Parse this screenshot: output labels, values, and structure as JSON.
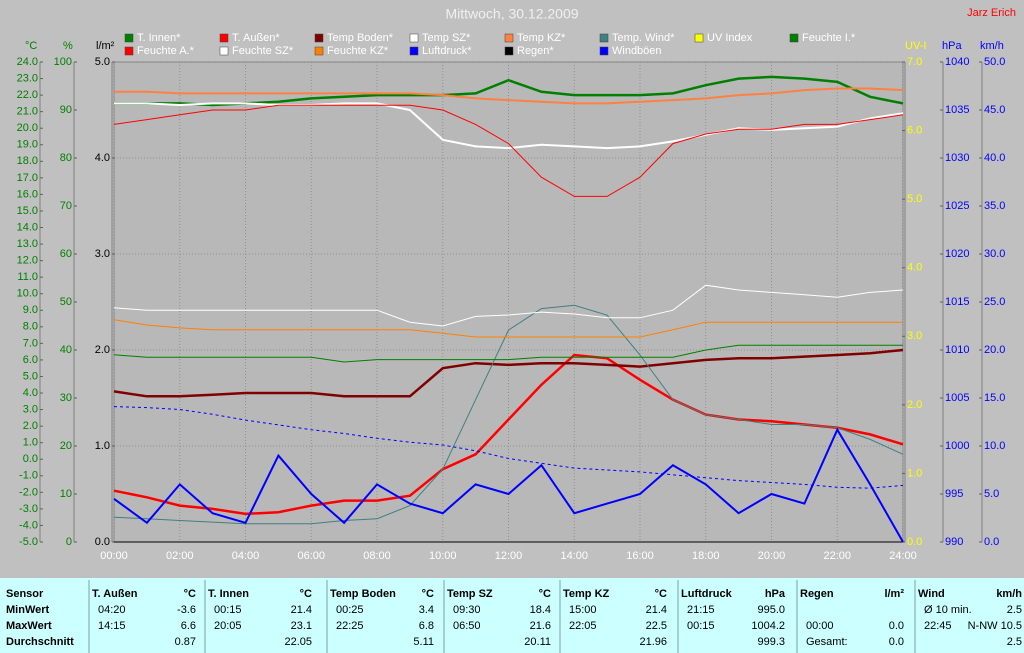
{
  "chart_data": {
    "type": "line",
    "title": "Mittwoch, 30.12.2009",
    "author": "Jarz Erich",
    "x": [
      0,
      1,
      2,
      3,
      4,
      5,
      6,
      7,
      8,
      9,
      10,
      11,
      12,
      13,
      14,
      15,
      16,
      17,
      18,
      19,
      20,
      21,
      22,
      23,
      24
    ],
    "xlim": [
      0,
      24
    ],
    "xticks": [
      {
        "value": 0,
        "label": "00:00"
      },
      {
        "value": 2,
        "label": "02:00"
      },
      {
        "value": 4,
        "label": "04:00"
      },
      {
        "value": 6,
        "label": "06:00"
      },
      {
        "value": 8,
        "label": "08:00"
      },
      {
        "value": 10,
        "label": "10:00"
      },
      {
        "value": 12,
        "label": "12:00"
      },
      {
        "value": 14,
        "label": "14:00"
      },
      {
        "value": 16,
        "label": "16:00"
      },
      {
        "value": 18,
        "label": "18:00"
      },
      {
        "value": 20,
        "label": "20:00"
      },
      {
        "value": 22,
        "label": "22:00"
      },
      {
        "value": 24,
        "label": "24:00"
      }
    ],
    "ylabel": "°C",
    "ylim": [
      -5,
      24
    ],
    "yticks": [
      {
        "value": -5,
        "label": "-5.0"
      },
      {
        "value": -4,
        "label": "-4.0"
      },
      {
        "value": -3,
        "label": "-3.0"
      },
      {
        "value": -2,
        "label": "-2.0"
      },
      {
        "value": -1,
        "label": "-1.0"
      },
      {
        "value": 0,
        "label": "0.0"
      },
      {
        "value": 1,
        "label": "1.0"
      },
      {
        "value": 2,
        "label": "2.0"
      },
      {
        "value": 3,
        "label": "3.0"
      },
      {
        "value": 4,
        "label": "4.0"
      },
      {
        "value": 5,
        "label": "5.0"
      },
      {
        "value": 6,
        "label": "6.0"
      },
      {
        "value": 7,
        "label": "7.0"
      },
      {
        "value": 8,
        "label": "8.0"
      },
      {
        "value": 9,
        "label": "9.0"
      },
      {
        "value": 10,
        "label": "10.0"
      },
      {
        "value": 11,
        "label": "11.0"
      },
      {
        "value": 12,
        "label": "12.0"
      },
      {
        "value": 13,
        "label": "13.0"
      },
      {
        "value": 14,
        "label": "14.0"
      },
      {
        "value": 15,
        "label": "15.0"
      },
      {
        "value": 16,
        "label": "16.0"
      },
      {
        "value": 17,
        "label": "17.0"
      },
      {
        "value": 18,
        "label": "18.0"
      },
      {
        "value": 19,
        "label": "19.0"
      },
      {
        "value": 20,
        "label": "20.0"
      },
      {
        "value": 21,
        "label": "21.0"
      },
      {
        "value": 22,
        "label": "22.0"
      },
      {
        "value": 23,
        "label": "23.0"
      },
      {
        "value": 24,
        "label": "24.0"
      }
    ],
    "y2label": "%",
    "y2lim": [
      0,
      100
    ],
    "y2ticks": [
      0,
      10,
      20,
      30,
      40,
      50,
      60,
      70,
      80,
      90,
      100
    ],
    "y3label": "l/m²",
    "y3lim": [
      0,
      5
    ],
    "y3ticks": [
      {
        "value": 0,
        "label": "0.0"
      },
      {
        "value": 1,
        "label": "1.0"
      },
      {
        "value": 2,
        "label": "2.0"
      },
      {
        "value": 3,
        "label": "3.0"
      },
      {
        "value": 4,
        "label": "4.0"
      },
      {
        "value": 5,
        "label": "5.0"
      }
    ],
    "y4label": "UV-I",
    "y4lim": [
      0,
      7
    ],
    "y4ticks": [
      {
        "value": 0,
        "label": "0.0"
      },
      {
        "value": 1,
        "label": "1.0"
      },
      {
        "value": 2,
        "label": "2.0"
      },
      {
        "value": 3,
        "label": "3.0"
      },
      {
        "value": 4,
        "label": "4.0"
      },
      {
        "value": 5,
        "label": "5.0"
      },
      {
        "value": 6,
        "label": "6.0"
      },
      {
        "value": 7,
        "label": "7.0"
      }
    ],
    "y5label": "hPa",
    "y5lim": [
      990,
      1040
    ],
    "y5ticks": [
      990,
      995,
      1000,
      1005,
      1010,
      1015,
      1020,
      1025,
      1030,
      1035,
      1040
    ],
    "y6label": "km/h",
    "y6lim": [
      0,
      50
    ],
    "y6ticks": [
      {
        "value": 0,
        "label": "0.0"
      },
      {
        "value": 5,
        "label": "5.0"
      },
      {
        "value": 10,
        "label": "10.0"
      },
      {
        "value": 15,
        "label": "15.0"
      },
      {
        "value": 20,
        "label": "20.0"
      },
      {
        "value": 25,
        "label": "25.0"
      },
      {
        "value": 30,
        "label": "30.0"
      },
      {
        "value": 35,
        "label": "35.0"
      },
      {
        "value": 40,
        "label": "40.0"
      },
      {
        "value": 45,
        "label": "45.0"
      },
      {
        "value": 50,
        "label": "50.0"
      }
    ],
    "grid": true,
    "series": [
      {
        "name": "T. Innen*",
        "color": "#008000",
        "axis": "y",
        "linewidth": 2.5,
        "values": [
          21.5,
          21.5,
          21.5,
          21.4,
          21.5,
          21.6,
          21.8,
          21.9,
          22.0,
          22.0,
          22.0,
          22.1,
          22.9,
          22.2,
          22.0,
          22.0,
          22.0,
          22.1,
          22.6,
          23.0,
          23.1,
          23.0,
          22.8,
          21.9,
          21.5
        ]
      },
      {
        "name": "T. Außen*",
        "color": "#ff0000",
        "axis": "y",
        "linewidth": 2.5,
        "values": [
          -1.9,
          -2.3,
          -2.8,
          -3.0,
          -3.3,
          -3.2,
          -2.8,
          -2.5,
          -2.5,
          -2.2,
          -0.6,
          0.3,
          2.4,
          4.5,
          6.3,
          6.1,
          4.8,
          3.6,
          2.7,
          2.4,
          2.3,
          2.1,
          1.9,
          1.5,
          0.9
        ]
      },
      {
        "name": "Temp Boden*",
        "color": "#800000",
        "axis": "y",
        "linewidth": 2.5,
        "values": [
          4.1,
          3.8,
          3.8,
          3.9,
          4.0,
          4.0,
          4.0,
          3.8,
          3.8,
          3.8,
          5.5,
          5.8,
          5.7,
          5.8,
          5.8,
          5.7,
          5.6,
          5.8,
          6.0,
          6.1,
          6.1,
          6.2,
          6.3,
          6.4,
          6.6
        ]
      },
      {
        "name": "Temp SZ*",
        "color": "#ffffff",
        "axis": "y",
        "linewidth": 2,
        "values": [
          21.5,
          21.5,
          21.4,
          21.5,
          21.5,
          21.4,
          21.4,
          21.5,
          21.5,
          21.1,
          19.3,
          18.9,
          18.8,
          19.0,
          18.9,
          18.8,
          18.9,
          19.2,
          19.6,
          20.0,
          19.9,
          20.0,
          20.1,
          20.6,
          20.9
        ]
      },
      {
        "name": "Temp KZ*",
        "color": "#ff8040",
        "axis": "y",
        "linewidth": 2,
        "values": [
          22.2,
          22.2,
          22.1,
          22.1,
          22.1,
          22.1,
          22.1,
          22.1,
          22.1,
          22.1,
          22.0,
          21.8,
          21.7,
          21.6,
          21.5,
          21.5,
          21.6,
          21.7,
          21.8,
          22.0,
          22.1,
          22.3,
          22.4,
          22.4,
          22.3
        ]
      },
      {
        "name": "Temp. Wind*",
        "color": "#408080",
        "axis": "y",
        "linewidth": 1,
        "values": [
          -3.5,
          -3.6,
          -3.7,
          -3.8,
          -3.9,
          -3.9,
          -3.9,
          -3.7,
          -3.6,
          -2.8,
          -0.6,
          3.6,
          7.8,
          9.1,
          9.3,
          8.7,
          6.3,
          3.6,
          2.7,
          2.4,
          2.1,
          2.1,
          1.9,
          1.2,
          0.3
        ]
      },
      {
        "name": "UV Index",
        "color": "#ffff00",
        "axis": "y4",
        "linewidth": 1,
        "values": [
          0,
          0,
          0,
          0,
          0,
          0,
          0,
          0,
          0,
          0,
          0,
          0,
          0,
          0,
          0,
          0,
          0,
          0,
          0,
          0,
          0,
          0,
          0,
          0,
          0
        ]
      },
      {
        "name": "Feuchte I.*",
        "color": "#008000",
        "axis": "y2",
        "linewidth": 1,
        "values": [
          39,
          38.5,
          38.5,
          38.5,
          38.5,
          38.5,
          38.5,
          37.5,
          38,
          38,
          38,
          38,
          38,
          38.5,
          38.5,
          38.5,
          38.5,
          38.5,
          40,
          41,
          41,
          41,
          41,
          41,
          41
        ]
      },
      {
        "name": "Feuchte A.*",
        "color": "#ff0000",
        "axis": "y2",
        "linewidth": 1,
        "values": [
          87,
          88,
          89,
          90,
          90,
          91,
          91,
          91,
          91,
          91,
          90,
          87,
          83,
          76,
          72,
          72,
          76,
          83,
          85,
          86,
          86,
          87,
          87,
          88,
          89
        ]
      },
      {
        "name": "Feuchte SZ*",
        "color": "#ffffff",
        "axis": "y2",
        "linewidth": 1,
        "values": [
          48.8,
          48.3,
          48.3,
          48.3,
          48.3,
          48.3,
          48.3,
          48.3,
          48.3,
          45.8,
          45,
          47,
          47.3,
          47.9,
          47.5,
          46.7,
          46.7,
          48.3,
          53.5,
          52.5,
          52,
          51.5,
          51,
          52,
          52.5
        ]
      },
      {
        "name": "Feuchte KZ*",
        "color": "#ff8000",
        "axis": "y2",
        "linewidth": 1,
        "values": [
          46.3,
          45.2,
          44.6,
          44.2,
          44.2,
          44.2,
          44.2,
          44.2,
          44.2,
          44.2,
          43.5,
          42.7,
          42.7,
          42.7,
          42.7,
          42.7,
          42.7,
          44.2,
          45.8,
          45.8,
          45.8,
          45.8,
          45.8,
          45.8,
          45.8
        ]
      },
      {
        "name": "Luftdruck*",
        "color": "#0000ff",
        "axis": "y5",
        "linewidth": 1,
        "linestyle": "dashed",
        "values": [
          1004.1,
          1004.0,
          1003.8,
          1003.3,
          1002.7,
          1002.2,
          1001.7,
          1001.3,
          1000.8,
          1000.4,
          1000.1,
          999.5,
          998.7,
          998.2,
          997.7,
          997.5,
          997.3,
          997.0,
          996.7,
          996.4,
          996.2,
          996.0,
          995.7,
          995.6,
          995.9
        ]
      },
      {
        "name": "Regen*",
        "color": "#000000",
        "axis": "y3",
        "linewidth": 1,
        "values": [
          0,
          0,
          0,
          0,
          0,
          0,
          0,
          0,
          0,
          0,
          0,
          0,
          0,
          0,
          0,
          0,
          0,
          0,
          0,
          0,
          0,
          0,
          0,
          0,
          0
        ]
      },
      {
        "name": "Windböen",
        "color": "#0000ff",
        "axis": "y6",
        "linewidth": 2,
        "values": [
          4.5,
          2,
          6,
          3,
          2,
          9,
          5,
          2,
          6,
          4,
          3,
          6,
          5,
          8,
          3,
          4,
          5,
          8,
          6,
          3,
          5,
          4,
          11.7,
          6,
          0
        ]
      }
    ]
  },
  "table": {
    "header": [
      {
        "name": "Sensor"
      },
      {
        "name": "T. Außen",
        "unit": "°C"
      },
      {
        "name": "T. Innen",
        "unit": "°C"
      },
      {
        "name": "Temp Boden",
        "unit": "°C"
      },
      {
        "name": "Temp SZ",
        "unit": "°C"
      },
      {
        "name": "Temp KZ",
        "unit": "°C"
      },
      {
        "name": "Luftdruck",
        "unit": "hPa"
      },
      {
        "name": "Regen",
        "unit": "l/m²"
      },
      {
        "name": "Wind",
        "unit": "km/h"
      }
    ],
    "rows": [
      {
        "label": "MinWert",
        "cells": [
          [
            "04:20",
            "-3.6"
          ],
          [
            "00:15",
            "21.4"
          ],
          [
            "00:25",
            "3.4"
          ],
          [
            "09:30",
            "18.4"
          ],
          [
            "15:00",
            "21.4"
          ],
          [
            "21:15",
            "995.0"
          ],
          [
            null,
            null
          ],
          [
            "Ø 10 min.",
            "2.5"
          ]
        ]
      },
      {
        "label": "MaxWert",
        "cells": [
          [
            "14:15",
            "6.6"
          ],
          [
            "20:05",
            "23.1"
          ],
          [
            "22:25",
            "6.8"
          ],
          [
            "06:50",
            "21.6"
          ],
          [
            "22:05",
            "22.5"
          ],
          [
            "00:15",
            "1004.2"
          ],
          [
            "00:00",
            "0.0"
          ],
          [
            "22:45",
            "N-NW 10.5"
          ]
        ]
      },
      {
        "label": "Durchschnitt",
        "cells": [
          [
            null,
            "0.87"
          ],
          [
            null,
            "22.05"
          ],
          [
            null,
            "5.11"
          ],
          [
            null,
            "20.11"
          ],
          [
            null,
            "21.96"
          ],
          [
            null,
            "999.3"
          ],
          [
            "Gesamt:",
            "0.0"
          ],
          [
            null,
            "2.5"
          ]
        ]
      }
    ]
  }
}
